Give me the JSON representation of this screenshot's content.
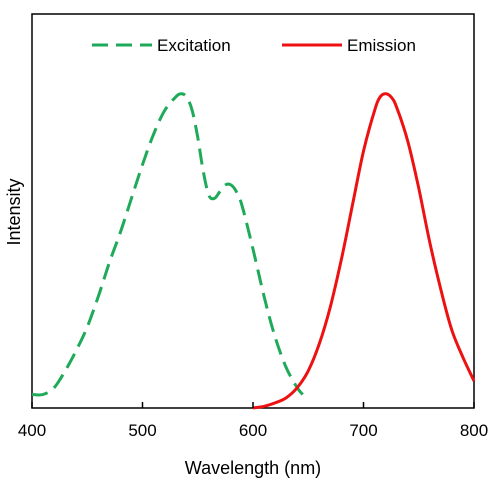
{
  "chart_data": {
    "type": "line",
    "title": "",
    "xlabel": "Wavelength (nm)",
    "ylabel": "Intensity",
    "xlim": [
      400,
      800
    ],
    "ylim": [
      0,
      1.0
    ],
    "x_ticks": [
      "400",
      "500",
      "600",
      "700",
      "800"
    ],
    "y_ticks_shown": false,
    "grid": false,
    "legend_position": "top",
    "series": [
      {
        "name": "Excitation",
        "color": "#1faa59",
        "style": "dashed",
        "x": [
          400,
          410,
          420,
          430,
          440,
          450,
          460,
          470,
          480,
          490,
          500,
          510,
          520,
          530,
          535,
          540,
          545,
          550,
          555,
          560,
          565,
          570,
          575,
          580,
          585,
          590,
          600,
          610,
          620,
          630,
          640,
          645
        ],
        "y": [
          0.04,
          0.04,
          0.06,
          0.11,
          0.17,
          0.24,
          0.33,
          0.43,
          0.52,
          0.62,
          0.72,
          0.81,
          0.88,
          0.92,
          0.93,
          0.92,
          0.88,
          0.8,
          0.7,
          0.63,
          0.62,
          0.64,
          0.66,
          0.66,
          0.64,
          0.6,
          0.47,
          0.33,
          0.21,
          0.12,
          0.06,
          0.04
        ]
      },
      {
        "name": "Emission",
        "color": "#ee1111",
        "style": "solid",
        "x": [
          600,
          610,
          620,
          630,
          640,
          650,
          660,
          670,
          680,
          690,
          700,
          710,
          715,
          720,
          725,
          730,
          740,
          750,
          760,
          770,
          780,
          790,
          800
        ],
        "y": [
          0.0,
          0.005,
          0.015,
          0.03,
          0.06,
          0.11,
          0.19,
          0.3,
          0.44,
          0.6,
          0.76,
          0.88,
          0.92,
          0.93,
          0.92,
          0.89,
          0.79,
          0.65,
          0.49,
          0.35,
          0.23,
          0.15,
          0.08
        ]
      }
    ]
  }
}
